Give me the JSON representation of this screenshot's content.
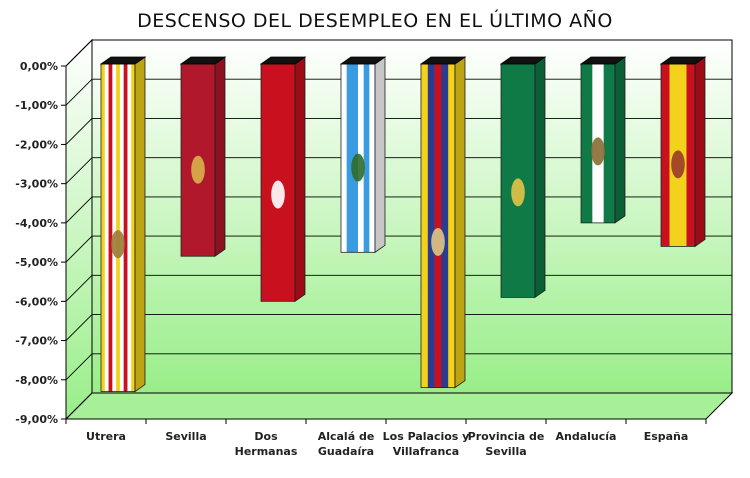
{
  "chart_data": {
    "type": "bar",
    "title": "DESCENSO DEL DESEMPLEO EN EL ÚLTIMO AÑO",
    "xlabel": "",
    "ylabel": "",
    "ylim": [
      -9,
      0
    ],
    "y_ticks": [
      "0,00%",
      "-1,00%",
      "-2,00%",
      "-3,00%",
      "-4,00%",
      "-5,00%",
      "-6,00%",
      "-7,00%",
      "-8,00%",
      "-9,00%"
    ],
    "grid": true,
    "legend": "none",
    "categories": [
      [
        "Utrera"
      ],
      [
        "Sevilla"
      ],
      [
        "Dos",
        "Hermanas"
      ],
      [
        "Alcalá de",
        "Guadaíra"
      ],
      [
        "Los Palacios y",
        "Villafranca"
      ],
      [
        "Provincia de",
        "Sevilla"
      ],
      [
        "Andalucía"
      ],
      [
        "España"
      ]
    ],
    "values": [
      -8.3,
      -4.85,
      -6.0,
      -4.75,
      -8.2,
      -5.9,
      -4.0,
      -4.6
    ],
    "bar_patterns": [
      {
        "stripes": [
          "#f2d21a",
          "#ffffff",
          "#c8101e",
          "#ffffff",
          "#f2d21a",
          "#ffffff",
          "#c8101e",
          "#ffffff",
          "#f2d21a"
        ],
        "emblem": "#9a7a3a"
      },
      {
        "stripes": [
          "#b2182b"
        ],
        "emblem": "#d8b24a"
      },
      {
        "stripes": [
          "#c8101e"
        ],
        "emblem": "#ffffff"
      },
      {
        "stripes": [
          "#ffffff",
          "#3a9be0",
          "#3a9be0",
          "#ffffff",
          "#3a9be0",
          "#ffffff"
        ],
        "emblem": "#2f6c2a"
      },
      {
        "stripes": [
          "#f2d21a",
          "#2a3c8f",
          "#c8101e",
          "#2a3c8f",
          "#f2d21a"
        ],
        "emblem": "#d8c88a"
      },
      {
        "stripes": [
          "#0f7a46"
        ],
        "emblem": "#e2c448"
      },
      {
        "stripes": [
          "#0f7a46",
          "#ffffff",
          "#0f7a46"
        ],
        "emblem": "#8a6a32"
      },
      {
        "stripes": [
          "#c8101e",
          "#f2d21a",
          "#f2d21a",
          "#c8101e"
        ],
        "emblem": "#9a3a2a"
      }
    ],
    "colors": {
      "floor_top": "#e8ffe0",
      "floor_bottom": "#99ee88",
      "bar_top": "#111111"
    }
  }
}
